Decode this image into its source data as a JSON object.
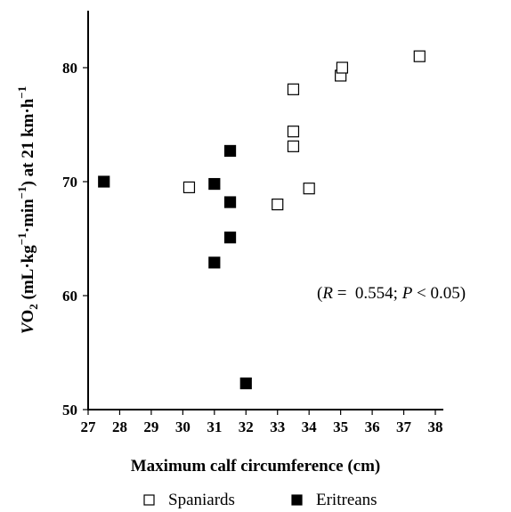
{
  "chart_data": {
    "type": "scatter",
    "title": "",
    "xlabel": "Maximum calf circumference (cm)",
    "ylabel_parts": [
      "V",
      "O",
      "2",
      " (mL·kg",
      "−1",
      "·min",
      "−1",
      ") at 21 km·h",
      "−1"
    ],
    "xlim": [
      27,
      38
    ],
    "ylim": [
      50,
      85
    ],
    "x_ticks": [
      "27",
      "28",
      "29",
      "30",
      "31",
      "32",
      "33",
      "34",
      "35",
      "36",
      "37",
      "38"
    ],
    "y_ticks": [
      "50",
      "60",
      "70",
      "80"
    ],
    "annotation": {
      "open": "(",
      "r_symbol": "R",
      "r_text": " =  0.554; ",
      "p_symbol": "P",
      "p_text": " < 0.05)"
    },
    "series": [
      {
        "name": "Spaniards",
        "marker": "open-square",
        "color": "#000000",
        "points": [
          {
            "x": 30.2,
            "y": 69.5
          },
          {
            "x": 33.0,
            "y": 68.0
          },
          {
            "x": 33.5,
            "y": 78.1
          },
          {
            "x": 33.5,
            "y": 74.4
          },
          {
            "x": 33.5,
            "y": 73.1
          },
          {
            "x": 34.0,
            "y": 69.4
          },
          {
            "x": 35.0,
            "y": 79.3
          },
          {
            "x": 35.05,
            "y": 80.0
          },
          {
            "x": 37.5,
            "y": 81.0
          }
        ]
      },
      {
        "name": "Eritreans",
        "marker": "filled-square",
        "color": "#000000",
        "points": [
          {
            "x": 27.5,
            "y": 70.0
          },
          {
            "x": 31.0,
            "y": 69.8
          },
          {
            "x": 31.0,
            "y": 62.9
          },
          {
            "x": 31.5,
            "y": 72.7
          },
          {
            "x": 31.5,
            "y": 68.2
          },
          {
            "x": 31.5,
            "y": 65.1
          },
          {
            "x": 32.0,
            "y": 52.3
          }
        ]
      }
    ],
    "legend": [
      {
        "label": "Spaniards",
        "marker": "open-square"
      },
      {
        "label": "Eritreans",
        "marker": "filled-square"
      }
    ]
  }
}
